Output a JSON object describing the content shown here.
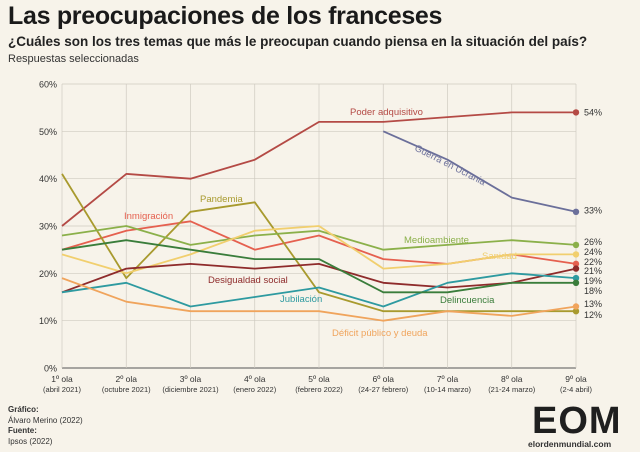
{
  "header": {
    "title": "Las preocupaciones de los franceses",
    "subtitle": "¿Cuáles son los tres temas que más le preocupan cuando piensa en la situación del país?",
    "note": "Respuestas seleccionadas"
  },
  "credits": {
    "grafico_label": "Gráfico:",
    "grafico_value": "Álvaro Merino (2022)",
    "fuente_label": "Fuente:",
    "fuente_value": "Ipsos (2022)"
  },
  "logo": {
    "main": "EOM",
    "sub": "elordenmundial.com"
  },
  "chart_data": {
    "type": "line",
    "ylim": [
      0,
      60
    ],
    "yticks": [
      "0%",
      "10%",
      "20%",
      "30%",
      "40%",
      "50%",
      "60%"
    ],
    "categories": [
      {
        "line1": "1º ola",
        "line2": "(abril 2021)"
      },
      {
        "line1": "2º ola",
        "line2": "(octubre 2021)"
      },
      {
        "line1": "3º ola",
        "line2": "(diciembre 2021)"
      },
      {
        "line1": "4º ola",
        "line2": "(enero 2022)"
      },
      {
        "line1": "5º ola",
        "line2": "(febrero 2022)"
      },
      {
        "line1": "6º ola",
        "line2": "(24-27 febrero)"
      },
      {
        "line1": "7º ola",
        "line2": "(10-14 marzo)"
      },
      {
        "line1": "8º ola",
        "line2": "(21-24 marzo)"
      },
      {
        "line1": "9º ola",
        "line2": "(2-4 abril)"
      }
    ],
    "series": [
      {
        "name": "Poder adquisitivo",
        "color": "#b44a45",
        "values": [
          30,
          41,
          40,
          44,
          52,
          52,
          53,
          54,
          54
        ],
        "end_label": "54%"
      },
      {
        "name": "Guerra en Ucrania",
        "color": "#6b6f9a",
        "values": [
          null,
          null,
          null,
          null,
          null,
          50,
          44,
          36,
          33
        ],
        "end_label": "33%"
      },
      {
        "name": "Inmigración",
        "color": "#e5604f",
        "values": [
          25,
          29,
          31,
          25,
          28,
          23,
          22,
          24,
          22
        ],
        "end_label": "22%"
      },
      {
        "name": "Pandemia",
        "color": "#a89a2e",
        "values": [
          41,
          19,
          33,
          35,
          16,
          12,
          12,
          12,
          12
        ],
        "end_label": "12%"
      },
      {
        "name": "Medioambiente",
        "color": "#8bb04a",
        "values": [
          28,
          30,
          26,
          28,
          29,
          25,
          26,
          27,
          26
        ],
        "end_label": "26%"
      },
      {
        "name": "Sanidad",
        "color": "#f1cf6e",
        "values": [
          24,
          20,
          24,
          29,
          30,
          21,
          22,
          24,
          24
        ],
        "end_label": "24%"
      },
      {
        "name": "Desigualdad social",
        "color": "#8e2b2b",
        "values": [
          16,
          21,
          22,
          21,
          22,
          18,
          17,
          18,
          21
        ],
        "end_label": "21%"
      },
      {
        "name": "Jubilación",
        "color": "#2e9aa0",
        "values": [
          16,
          18,
          13,
          15,
          17,
          13,
          18,
          20,
          19
        ],
        "end_label": "19%"
      },
      {
        "name": "Delincuencia",
        "color": "#3a7d3b",
        "values": [
          25,
          27,
          25,
          23,
          23,
          16,
          16,
          18,
          18
        ],
        "end_label": "18%"
      },
      {
        "name": "Déficit público y deuda",
        "color": "#f0a45c",
        "values": [
          19,
          14,
          12,
          12,
          12,
          10,
          12,
          11,
          13
        ],
        "end_label": "13%"
      }
    ]
  }
}
